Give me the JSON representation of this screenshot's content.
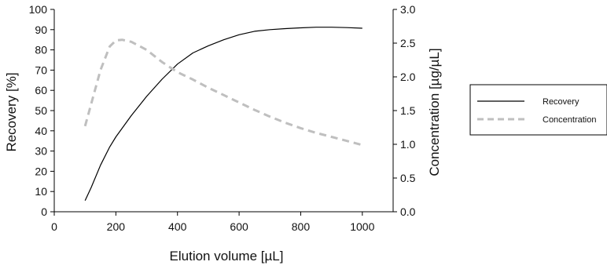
{
  "chart_data": {
    "type": "line",
    "title": "",
    "xlabel": "Elution volume [µL]",
    "ylabel": "Recovery [%]",
    "y2label": "Concentration [µg/µL]",
    "xlim": [
      0,
      1100
    ],
    "ylim": [
      0,
      100
    ],
    "y2lim": [
      0.0,
      3.0
    ],
    "xticks": [
      "0",
      "200",
      "400",
      "600",
      "800",
      "1000"
    ],
    "yticks": [
      "0",
      "10",
      "20",
      "30",
      "40",
      "50",
      "60",
      "70",
      "80",
      "90",
      "100"
    ],
    "y2ticks": [
      "0.0",
      "0.5",
      "1.0",
      "1.5",
      "2.0",
      "2.5",
      "3.0"
    ],
    "grid": false,
    "legend_position": "right",
    "series": [
      {
        "name": "Recovery",
        "axis": "left",
        "style": "solid",
        "color": "#000000",
        "x": [
          100,
          120,
          150,
          180,
          200,
          250,
          300,
          350,
          400,
          450,
          500,
          550,
          600,
          650,
          700,
          750,
          800,
          850,
          900,
          950,
          1000
        ],
        "y": [
          5.5,
          12,
          23,
          32,
          37,
          47.5,
          57,
          65.5,
          73,
          78.5,
          82,
          85,
          87.5,
          89.2,
          90,
          90.5,
          90.9,
          91.2,
          91.2,
          91,
          90.7
        ]
      },
      {
        "name": "Concentration",
        "axis": "right",
        "style": "dashed",
        "color": "#bfbfbf",
        "x": [
          100,
          120,
          150,
          180,
          200,
          220,
          250,
          300,
          350,
          400,
          450,
          500,
          550,
          600,
          650,
          700,
          750,
          800,
          850,
          900,
          950,
          1000
        ],
        "y": [
          1.27,
          1.6,
          2.1,
          2.45,
          2.54,
          2.55,
          2.52,
          2.4,
          2.22,
          2.07,
          1.96,
          1.84,
          1.73,
          1.62,
          1.51,
          1.41,
          1.32,
          1.24,
          1.17,
          1.11,
          1.05,
          0.99
        ]
      }
    ]
  }
}
